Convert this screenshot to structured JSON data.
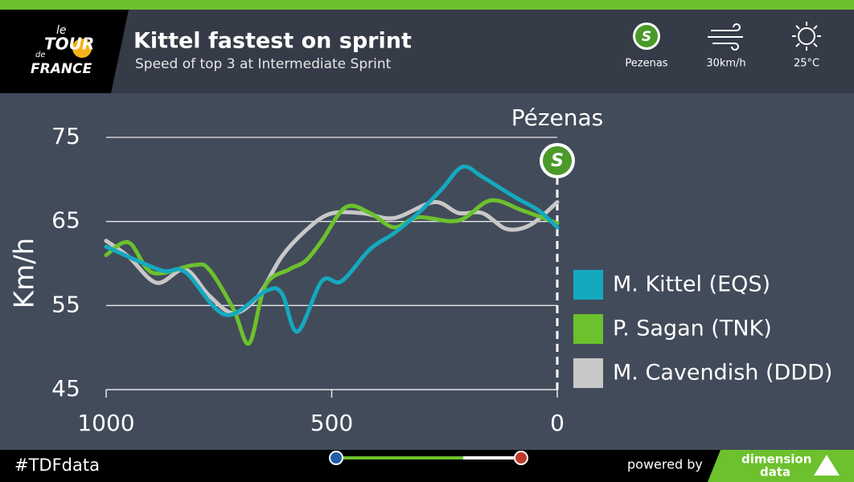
{
  "header": {
    "logo": [
      "le",
      "TOUR",
      "de",
      "FRANCE"
    ],
    "title": "Kittel fastest on sprint",
    "subtitle": "Speed of top 3 at Intermediate Sprint",
    "badge": "S",
    "stage": "Pezenas",
    "wind": "30km/h",
    "temperature": "25°C"
  },
  "footer": {
    "hashtag": "#TDFdata",
    "powered": "powered by",
    "brand": [
      "dimension",
      "data"
    ]
  },
  "chart_data": {
    "type": "line",
    "y_label": "Km/h",
    "annotation": "Pézenas",
    "legend": "right",
    "grid": true,
    "xlim": [
      1000,
      0
    ],
    "xticks": [
      1000,
      500,
      0
    ],
    "ylim": [
      45,
      75
    ],
    "yticks": [
      45,
      55,
      65,
      75
    ],
    "series": [
      {
        "name": "M. Kittel (EQS)",
        "color": "#14a9bf",
        "x": [
          1000,
          879,
          825,
          736,
          647,
          611,
          576,
          522,
          478,
          415,
          362,
          308,
          255,
          210,
          166,
          94,
          41,
          0
        ],
        "values": [
          62,
          59.2,
          59,
          53.9,
          56.7,
          56.5,
          51.9,
          57.9,
          57.9,
          61.7,
          63.6,
          66,
          68.9,
          71.5,
          70.3,
          67.9,
          66.3,
          64.3
        ]
      },
      {
        "name": "P. Sagan (TNK)",
        "color": "#6cc12d",
        "x": [
          1000,
          950,
          897,
          807,
          772,
          718,
          683,
          647,
          594,
          558,
          522,
          469,
          415,
          362,
          308,
          219,
          148,
          77,
          0
        ],
        "values": [
          61,
          62.5,
          58.9,
          59.8,
          59.3,
          54.6,
          50.5,
          57.4,
          59.3,
          60.3,
          62.7,
          66.7,
          66,
          64.3,
          65.5,
          65.1,
          67.5,
          66.3,
          64.8
        ]
      },
      {
        "name": "M. Cavendish (DDD)",
        "color": "#c8c8c8",
        "x": [
          1000,
          950,
          888,
          825,
          772,
          718,
          665,
          611,
          558,
          504,
          433,
          362,
          273,
          219,
          166,
          112,
          59,
          0
        ],
        "values": [
          62.7,
          60.8,
          57.7,
          59.3,
          56.2,
          54.1,
          56,
          60.8,
          63.9,
          65.9,
          66,
          65.4,
          67.3,
          66,
          66,
          64.1,
          64.6,
          67.3
        ]
      }
    ]
  }
}
